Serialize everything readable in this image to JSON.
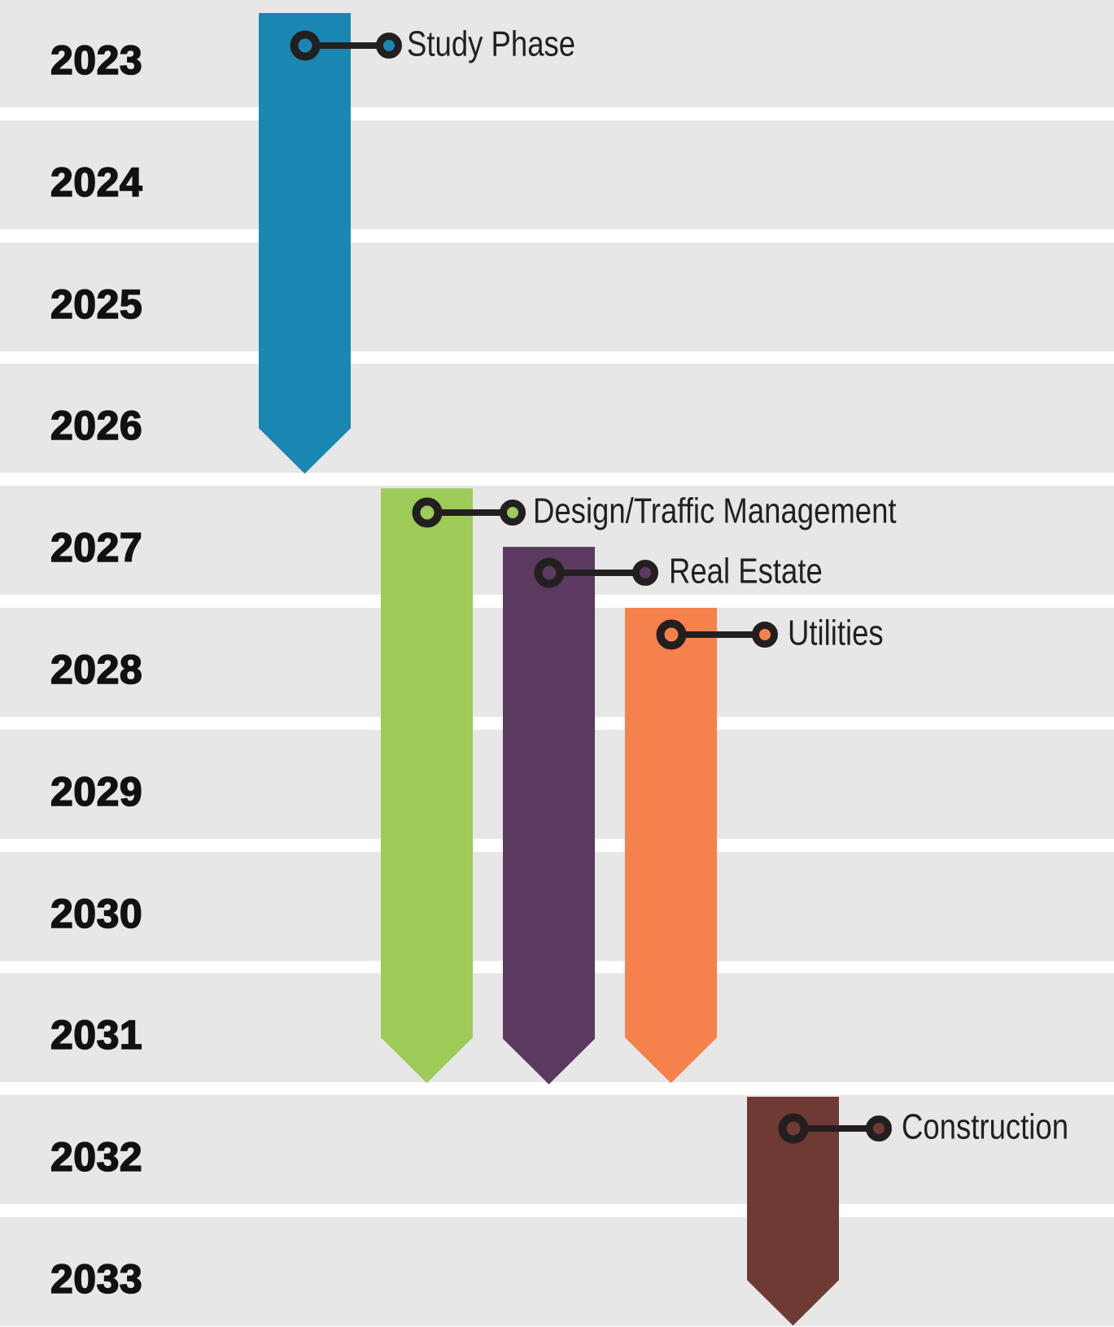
{
  "chart_data": {
    "type": "timeline",
    "title": "",
    "orientation": "vertical",
    "description": "Vertical Gantt-style project schedule; one gray row band per year, phases drawn as downward-pointing arrows",
    "years": [
      "2023",
      "2024",
      "2025",
      "2026",
      "2027",
      "2028",
      "2029",
      "2030",
      "2031",
      "2032",
      "2033"
    ],
    "axis": {
      "unit": "year",
      "range_start": 2023,
      "range_end": 2033,
      "grid": "alternating horizontal bands"
    },
    "colors": {
      "row_band": "#E7E7E7",
      "row_gap": "#FFFFFF",
      "ink": "#231F20",
      "year_text": "#111111"
    },
    "legend_position": "callouts attached to each bar",
    "phases": [
      {
        "label": "Study Phase",
        "color": "#1A87B2",
        "start": 2023.12,
        "end": 2026.9
      },
      {
        "label": "Design/Traffic Management",
        "color": "#9CCB58",
        "start": 2027.02,
        "end": 2031.9
      },
      {
        "label": "Real Estate",
        "color": "#5A3A5F",
        "start": 2027.5,
        "end": 2031.91
      },
      {
        "label": "Utilities",
        "color": "#F5824C",
        "start": 2028.0,
        "end": 2031.9
      },
      {
        "label": "Construction",
        "color": "#6F3A33",
        "start": 2032.01,
        "end": 2033.89
      }
    ]
  }
}
